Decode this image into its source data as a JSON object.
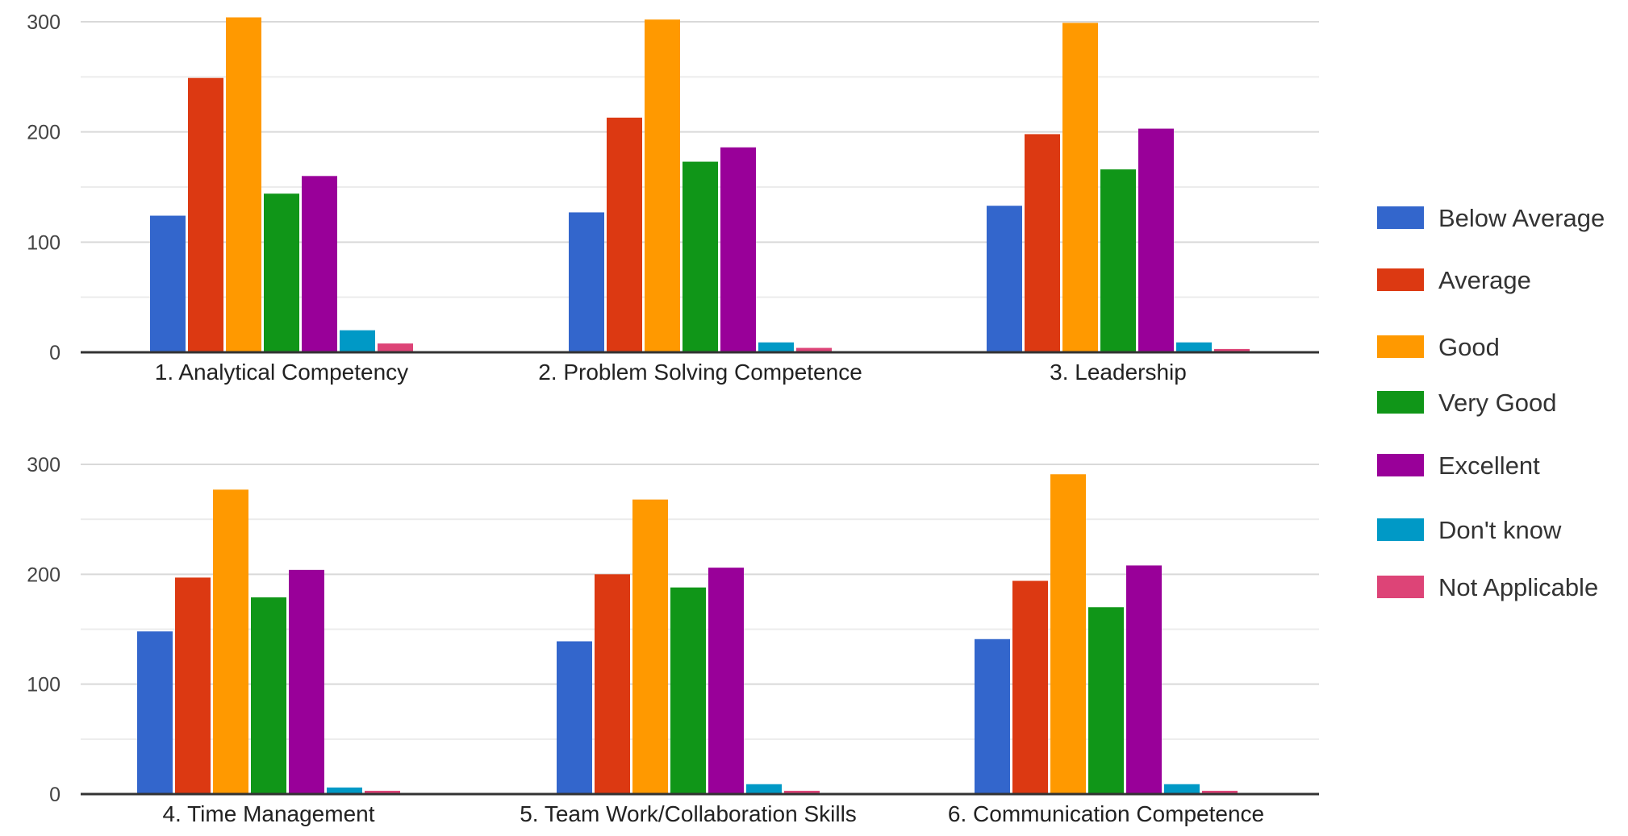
{
  "legend": {
    "entries": [
      {
        "label": "Below Average",
        "color": "#3366cc"
      },
      {
        "label": "Average",
        "color": "#dc3912"
      },
      {
        "label": "Good",
        "color": "#ff9900"
      },
      {
        "label": "Very Good",
        "color": "#109618"
      },
      {
        "label": "Excellent",
        "color": "#990099"
      },
      {
        "label": "Don't know",
        "color": "#0099c6"
      },
      {
        "label": "Not Applicable",
        "color": "#dd4477"
      }
    ]
  },
  "chart_data": [
    {
      "type": "bar",
      "categories": [
        "1. Analytical Competency",
        "2. Problem Solving Competence",
        "3. Leadership"
      ],
      "series": [
        {
          "name": "Below Average",
          "values": [
            124,
            127,
            133
          ]
        },
        {
          "name": "Average",
          "values": [
            249,
            213,
            198
          ]
        },
        {
          "name": "Good",
          "values": [
            304,
            302,
            299
          ]
        },
        {
          "name": "Very Good",
          "values": [
            144,
            173,
            166
          ]
        },
        {
          "name": "Excellent",
          "values": [
            160,
            186,
            203
          ]
        },
        {
          "name": "Don't know",
          "values": [
            20,
            9,
            9
          ]
        },
        {
          "name": "Not Applicable",
          "values": [
            8,
            4,
            3
          ]
        }
      ],
      "yticks": [
        "0",
        "100",
        "200",
        "300"
      ],
      "ylim": [
        0,
        300
      ],
      "grid": true,
      "legend": "right"
    },
    {
      "type": "bar",
      "categories": [
        "4. Time Management",
        "5. Team Work/Collaboration Skills",
        "6. Communication Competence"
      ],
      "series": [
        {
          "name": "Below Average",
          "values": [
            148,
            139,
            141
          ]
        },
        {
          "name": "Average",
          "values": [
            197,
            200,
            194
          ]
        },
        {
          "name": "Good",
          "values": [
            277,
            268,
            291
          ]
        },
        {
          "name": "Very Good",
          "values": [
            179,
            188,
            170
          ]
        },
        {
          "name": "Excellent",
          "values": [
            204,
            206,
            208
          ]
        },
        {
          "name": "Don't know",
          "values": [
            6,
            9,
            9
          ]
        },
        {
          "name": "Not Applicable",
          "values": [
            3,
            3,
            3
          ]
        }
      ],
      "yticks": [
        "0",
        "100",
        "200",
        "300"
      ],
      "ylim": [
        0,
        300
      ],
      "grid": true,
      "legend": "right"
    }
  ]
}
